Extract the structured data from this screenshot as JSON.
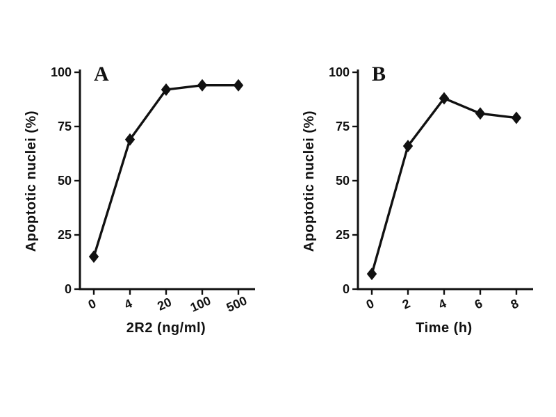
{
  "figure": {
    "background": "#ffffff",
    "ink": "#111111"
  },
  "chart_data": [
    {
      "type": "line",
      "panel_label": "A",
      "title": "",
      "xlabel": "2R2 (ng/ml)",
      "ylabel": "Apoptotic nuclei (%)",
      "categories": [
        "0",
        "4",
        "20",
        "100",
        "500"
      ],
      "values": [
        15,
        69,
        92,
        94,
        94
      ],
      "ylim": [
        0,
        100
      ],
      "yticks": [
        0,
        25,
        50,
        75,
        100
      ],
      "marker": "diamond",
      "line_color": "#111111",
      "grid": false,
      "legend": "none"
    },
    {
      "type": "line",
      "panel_label": "B",
      "title": "",
      "xlabel": "Time (h)",
      "ylabel": "Apoptotic nuclei (%)",
      "categories": [
        "0",
        "2",
        "4",
        "6",
        "8"
      ],
      "values": [
        7,
        66,
        88,
        81,
        79
      ],
      "ylim": [
        0,
        100
      ],
      "yticks": [
        0,
        25,
        50,
        75,
        100
      ],
      "marker": "diamond",
      "line_color": "#111111",
      "grid": false,
      "legend": "none"
    }
  ]
}
